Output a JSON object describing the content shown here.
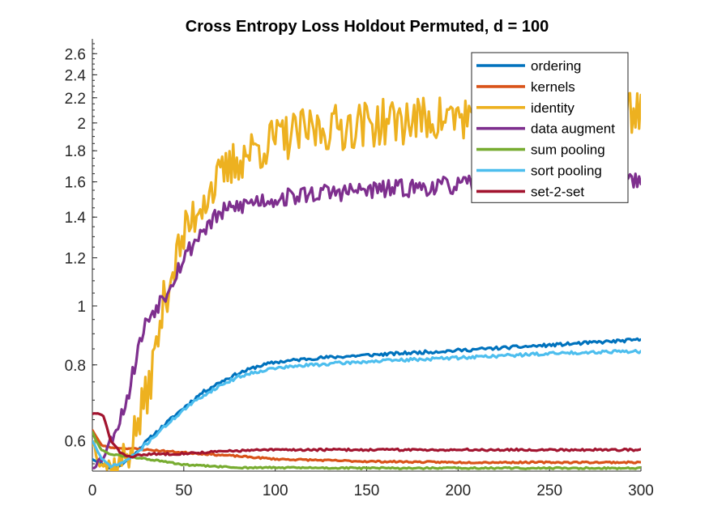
{
  "chart_data": {
    "type": "line",
    "title": "Cross Entropy Loss Holdout Permuted, d = 100",
    "xlabel": "",
    "ylabel": "",
    "yscale": "log",
    "xlim": [
      0,
      300
    ],
    "ylim": [
      0.535,
      2.75
    ],
    "xticks": [
      0,
      50,
      100,
      150,
      200,
      250,
      300
    ],
    "xtick_labels": [
      "0",
      "50",
      "100",
      "150",
      "200",
      "250",
      "300"
    ],
    "yticks": [
      0.6,
      0.8,
      1,
      1.2,
      1.4,
      1.6,
      1.8,
      2,
      2.2,
      2.4,
      2.6
    ],
    "ytick_labels": [
      "0.6",
      "0.8",
      "1",
      "1.2",
      "1.4",
      "1.6",
      "1.8",
      "2",
      "2.2",
      "2.4",
      "2.6"
    ],
    "legend_position": "top-right",
    "series": [
      {
        "name": "ordering",
        "color": "#0072BD",
        "x": [
          0,
          5,
          10,
          15,
          20,
          25,
          30,
          40,
          50,
          60,
          70,
          80,
          90,
          100,
          120,
          150,
          200,
          250,
          300
        ],
        "values": [
          0.56,
          0.55,
          0.54,
          0.545,
          0.56,
          0.58,
          0.6,
          0.64,
          0.68,
          0.72,
          0.75,
          0.775,
          0.795,
          0.808,
          0.82,
          0.83,
          0.845,
          0.862,
          0.88
        ],
        "noise": 0.006,
        "seed": 11
      },
      {
        "name": "kernels",
        "color": "#D95319",
        "x": [
          0,
          2,
          5,
          10,
          20,
          30,
          50,
          80,
          100,
          150,
          200,
          300
        ],
        "values": [
          0.625,
          0.61,
          0.59,
          0.585,
          0.583,
          0.58,
          0.574,
          0.566,
          0.56,
          0.555,
          0.553,
          0.553
        ],
        "noise": 0.003,
        "seed": 23
      },
      {
        "name": "identity",
        "color": "#EDB120",
        "x": [
          0,
          5,
          10,
          15,
          20,
          25,
          30,
          35,
          40,
          50,
          60,
          70,
          80,
          90,
          100,
          120,
          150,
          200,
          250,
          290,
          300
        ],
        "values": [
          0.6,
          0.56,
          0.54,
          0.55,
          0.58,
          0.64,
          0.72,
          0.85,
          1.05,
          1.3,
          1.5,
          1.62,
          1.75,
          1.82,
          1.88,
          1.95,
          2.0,
          2.05,
          2.08,
          2.1,
          2.1
        ],
        "noise": 0.09,
        "seed": 37
      },
      {
        "name": "data augment",
        "color": "#7E2F8E",
        "x": [
          0,
          5,
          10,
          15,
          20,
          25,
          30,
          35,
          40,
          50,
          60,
          70,
          80,
          90,
          100,
          120,
          150,
          200,
          250,
          300
        ],
        "values": [
          0.545,
          0.56,
          0.6,
          0.65,
          0.72,
          0.85,
          0.95,
          1.0,
          1.05,
          1.2,
          1.33,
          1.42,
          1.46,
          1.49,
          1.5,
          1.53,
          1.55,
          1.58,
          1.6,
          1.62
        ],
        "noise": 0.035,
        "seed": 53
      },
      {
        "name": "sum pooling",
        "color": "#77AC30",
        "x": [
          0,
          2,
          5,
          10,
          20,
          30,
          50,
          80,
          100,
          150,
          200,
          300
        ],
        "values": [
          0.62,
          0.6,
          0.58,
          0.57,
          0.565,
          0.56,
          0.548,
          0.542,
          0.542,
          0.541,
          0.541,
          0.541
        ],
        "noise": 0.003,
        "seed": 61
      },
      {
        "name": "sort pooling",
        "color": "#4DBEEE",
        "x": [
          0,
          5,
          10,
          15,
          20,
          25,
          30,
          40,
          50,
          60,
          70,
          80,
          90,
          100,
          120,
          150,
          200,
          250,
          290,
          300
        ],
        "values": [
          0.6,
          0.56,
          0.545,
          0.55,
          0.56,
          0.575,
          0.595,
          0.635,
          0.675,
          0.71,
          0.74,
          0.765,
          0.78,
          0.79,
          0.8,
          0.81,
          0.822,
          0.835,
          0.843,
          0.84
        ],
        "noise": 0.006,
        "seed": 71
      },
      {
        "name": "set-2-set",
        "color": "#A2142F",
        "x": [
          0,
          3,
          6,
          8,
          10,
          15,
          20,
          30,
          50,
          80,
          100,
          150,
          200,
          300
        ],
        "values": [
          0.665,
          0.665,
          0.66,
          0.63,
          0.6,
          0.575,
          0.565,
          0.57,
          0.572,
          0.578,
          0.58,
          0.58,
          0.58,
          0.58
        ],
        "noise": 0.004,
        "seed": 83
      }
    ]
  }
}
